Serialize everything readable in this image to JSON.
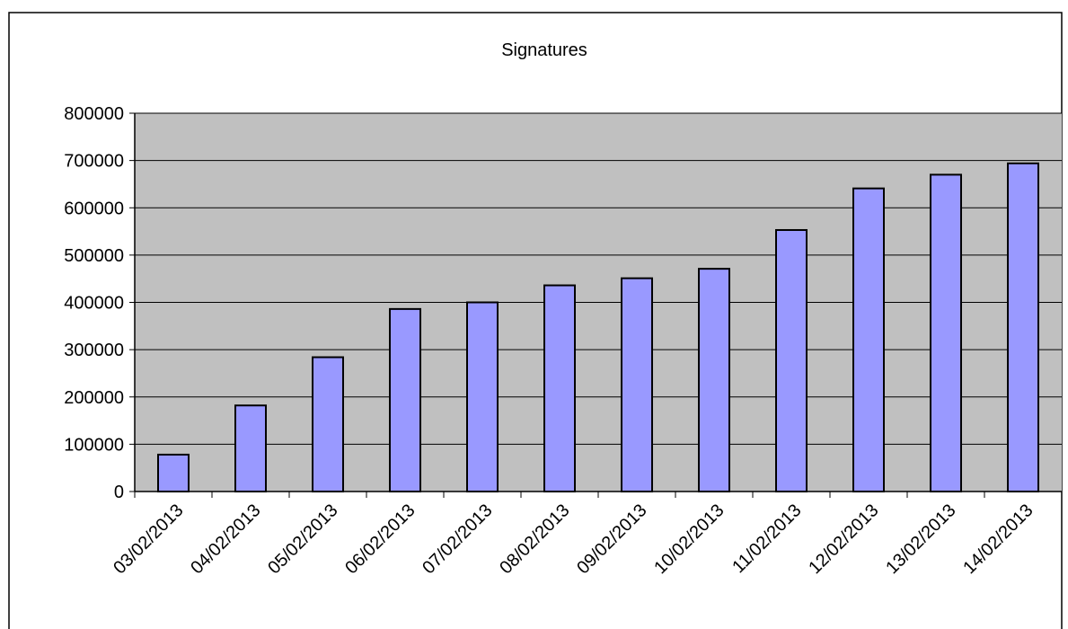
{
  "chart_data": {
    "type": "bar",
    "title": "Signatures",
    "xlabel": "",
    "ylabel": "",
    "categories": [
      "03/02/2013",
      "04/02/2013",
      "05/02/2013",
      "06/02/2013",
      "07/02/2013",
      "08/02/2013",
      "09/02/2013",
      "10/02/2013",
      "11/02/2013",
      "12/02/2013",
      "13/02/2013",
      "14/02/2013"
    ],
    "values": [
      78000,
      182000,
      284000,
      386000,
      400000,
      436000,
      451000,
      471000,
      553000,
      641000,
      670000,
      694000
    ],
    "ylim": [
      0,
      800000
    ],
    "yticks": [
      0,
      100000,
      200000,
      300000,
      400000,
      500000,
      600000,
      700000,
      800000
    ],
    "ytick_labels": [
      "0",
      "100000",
      "200000",
      "300000",
      "400000",
      "500000",
      "600000",
      "700000",
      "800000"
    ],
    "grid": true,
    "legend": "none",
    "colors": {
      "bar_fill": "#9999ff",
      "bar_stroke": "#000000",
      "plot_background": "#c0c0c0",
      "gridline": "#000000",
      "frame": "#000000"
    }
  }
}
